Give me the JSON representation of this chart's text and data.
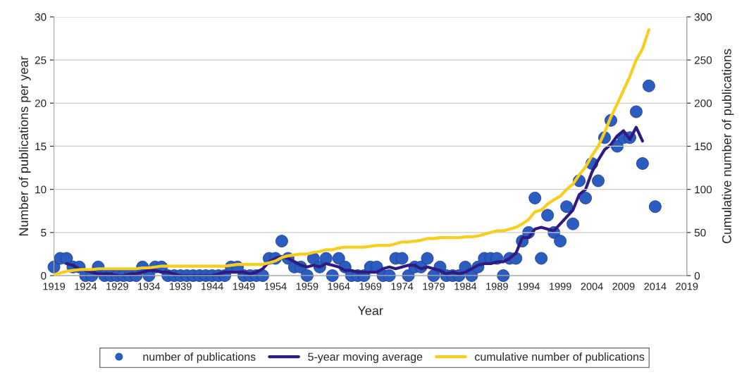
{
  "chart_data": {
    "type": "scatter",
    "xlabel": "Year",
    "ylabel": "Number of publications per year",
    "y2label": "Cumulative number of publications",
    "xlim": [
      1919,
      2019
    ],
    "xticks": [
      1919,
      1924,
      1929,
      1934,
      1939,
      1944,
      1949,
      1954,
      1959,
      1964,
      1969,
      1974,
      1979,
      1984,
      1989,
      1994,
      1999,
      2004,
      2009,
      2014,
      2019
    ],
    "ylim": [
      0,
      30
    ],
    "yticks": [
      0,
      5,
      10,
      15,
      20,
      25,
      30
    ],
    "y2lim": [
      0,
      300
    ],
    "y2ticks": [
      0,
      50,
      100,
      150,
      200,
      250,
      300
    ],
    "grid": "y",
    "legend": "bottom",
    "series": [
      {
        "name": "number of publications",
        "marker": "circle",
        "color": "#2b5cc0",
        "x": [
          1919,
          1920,
          1921,
          1922,
          1923,
          1924,
          1925,
          1926,
          1927,
          1928,
          1929,
          1930,
          1931,
          1932,
          1933,
          1934,
          1935,
          1936,
          1937,
          1938,
          1939,
          1940,
          1941,
          1942,
          1943,
          1944,
          1945,
          1946,
          1947,
          1948,
          1949,
          1950,
          1951,
          1952,
          1953,
          1954,
          1955,
          1956,
          1957,
          1958,
          1959,
          1960,
          1961,
          1962,
          1963,
          1964,
          1965,
          1966,
          1967,
          1968,
          1969,
          1970,
          1971,
          1972,
          1973,
          1974,
          1975,
          1976,
          1977,
          1978,
          1979,
          1980,
          1981,
          1982,
          1983,
          1984,
          1985,
          1986,
          1987,
          1988,
          1989,
          1990,
          1991,
          1992,
          1993,
          1994,
          1995,
          1996,
          1997,
          1998,
          1999,
          2000,
          2001,
          2002,
          2003,
          2004,
          2005,
          2006,
          2007,
          2008,
          2009,
          2010,
          2011,
          2012,
          2013,
          2014
        ],
        "values": [
          1,
          2,
          2,
          1,
          1,
          0,
          0,
          1,
          0,
          0,
          0,
          0,
          0,
          0,
          1,
          0,
          1,
          1,
          0,
          0,
          0,
          0,
          0,
          0,
          0,
          0,
          0,
          0,
          1,
          1,
          0,
          0,
          0,
          0,
          2,
          2,
          4,
          2,
          1,
          1,
          0,
          2,
          1,
          2,
          0,
          2,
          1,
          0,
          0,
          0,
          1,
          1,
          0,
          0,
          2,
          2,
          0,
          1,
          1,
          2,
          0,
          1,
          0,
          0,
          0,
          1,
          0,
          1,
          2,
          2,
          2,
          0,
          2,
          2,
          4,
          5,
          9,
          2,
          7,
          5,
          4,
          8,
          6,
          11,
          9,
          13,
          11,
          16,
          18,
          15,
          16,
          16,
          19,
          13,
          22,
          8
        ]
      },
      {
        "name": "5-year moving average",
        "type": "line",
        "marker": "none",
        "color": "#2e1a80",
        "x": [
          1921,
          1922,
          1923,
          1924,
          1925,
          1926,
          1927,
          1928,
          1929,
          1930,
          1931,
          1932,
          1933,
          1934,
          1935,
          1936,
          1937,
          1938,
          1939,
          1940,
          1941,
          1942,
          1943,
          1944,
          1945,
          1946,
          1947,
          1948,
          1949,
          1950,
          1951,
          1952,
          1953,
          1954,
          1955,
          1956,
          1957,
          1958,
          1959,
          1960,
          1961,
          1962,
          1963,
          1964,
          1965,
          1966,
          1967,
          1968,
          1969,
          1970,
          1971,
          1972,
          1973,
          1974,
          1975,
          1976,
          1977,
          1978,
          1979,
          1980,
          1981,
          1982,
          1983,
          1984,
          1985,
          1986,
          1987,
          1988,
          1989,
          1990,
          1991,
          1992,
          1993,
          1994,
          1995,
          1996,
          1997,
          1998,
          1999,
          2000,
          2001,
          2002,
          2003,
          2004,
          2005,
          2006,
          2007,
          2008,
          2009,
          2010,
          2011,
          2012
        ],
        "values": [
          1.4,
          1.2,
          0.8,
          0.6,
          0.4,
          0.2,
          0.2,
          0.2,
          0,
          0,
          0.2,
          0.2,
          0.4,
          0.6,
          0.6,
          0.4,
          0.4,
          0.2,
          0,
          0,
          0,
          0,
          0,
          0,
          0.2,
          0.4,
          0.4,
          0.4,
          0.4,
          0.2,
          0.4,
          0.8,
          1.6,
          2.0,
          2.2,
          2.0,
          1.6,
          1.2,
          1.0,
          1.2,
          1.0,
          1.4,
          1.2,
          1.0,
          0.6,
          0.6,
          0.4,
          0.4,
          0.4,
          0.4,
          0.8,
          1.0,
          0.8,
          1.0,
          1.2,
          1.2,
          0.8,
          1.0,
          0.8,
          0.6,
          0.2,
          0.4,
          0.2,
          0.4,
          0.8,
          1.2,
          1.4,
          1.4,
          1.6,
          1.6,
          2.0,
          2.6,
          4.4,
          4.4,
          5.4,
          5.6,
          5.4,
          5.2,
          6.0,
          6.8,
          7.6,
          9.4,
          10.0,
          12.0,
          13.4,
          14.6,
          15.2,
          16.2,
          16.8,
          15.8,
          17.2,
          15.6
        ]
      },
      {
        "name": "cumulative number of publications",
        "type": "line",
        "marker": "none",
        "axis": "y2",
        "color": "#f7cd1e",
        "x": [
          1919,
          1920,
          1921,
          1922,
          1923,
          1924,
          1925,
          1926,
          1927,
          1928,
          1929,
          1930,
          1931,
          1932,
          1933,
          1934,
          1935,
          1936,
          1937,
          1938,
          1939,
          1940,
          1941,
          1942,
          1943,
          1944,
          1945,
          1946,
          1947,
          1948,
          1949,
          1950,
          1951,
          1952,
          1953,
          1954,
          1955,
          1956,
          1957,
          1958,
          1959,
          1960,
          1961,
          1962,
          1963,
          1964,
          1965,
          1966,
          1967,
          1968,
          1969,
          1970,
          1971,
          1972,
          1973,
          1974,
          1975,
          1976,
          1977,
          1978,
          1979,
          1980,
          1981,
          1982,
          1983,
          1984,
          1985,
          1986,
          1987,
          1988,
          1989,
          1990,
          1991,
          1992,
          1993,
          1994,
          1995,
          1996,
          1997,
          1998,
          1999,
          2000,
          2001,
          2002,
          2003,
          2004,
          2005,
          2006,
          2007,
          2008,
          2009,
          2010,
          2011,
          2012,
          2013
        ],
        "values": [
          1,
          3,
          5,
          6,
          7,
          7,
          7,
          8,
          8,
          8,
          8,
          8,
          8,
          8,
          9,
          9,
          10,
          11,
          11,
          11,
          11,
          11,
          11,
          11,
          11,
          11,
          11,
          11,
          12,
          13,
          13,
          13,
          13,
          13,
          15,
          17,
          21,
          23,
          24,
          25,
          25,
          27,
          28,
          30,
          30,
          32,
          33,
          33,
          33,
          33,
          34,
          35,
          35,
          35,
          37,
          39,
          39,
          40,
          41,
          43,
          43,
          44,
          44,
          44,
          44,
          45,
          45,
          46,
          48,
          50,
          52,
          52,
          54,
          56,
          60,
          65,
          74,
          76,
          83,
          88,
          92,
          100,
          106,
          117,
          126,
          139,
          150,
          166,
          184,
          199,
          215,
          231,
          250,
          263,
          285
        ]
      }
    ]
  }
}
